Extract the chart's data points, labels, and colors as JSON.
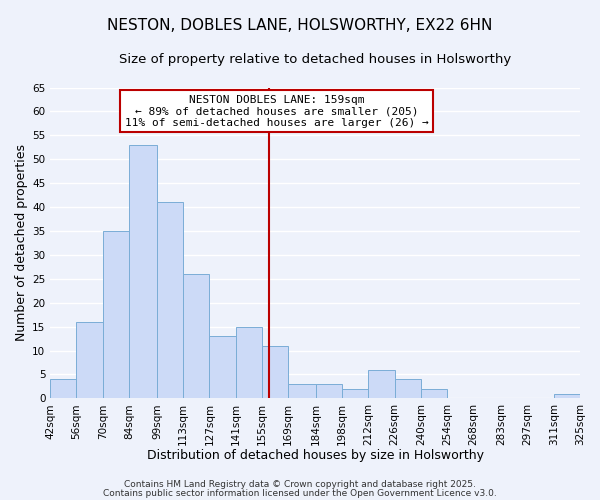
{
  "title": "NESTON, DOBLES LANE, HOLSWORTHY, EX22 6HN",
  "subtitle": "Size of property relative to detached houses in Holsworthy",
  "xlabel": "Distribution of detached houses by size in Holsworthy",
  "ylabel": "Number of detached properties",
  "bar_values": [
    4,
    16,
    35,
    53,
    41,
    26,
    13,
    15,
    11,
    3,
    3,
    2,
    6,
    4,
    2,
    0,
    0,
    0,
    0,
    1
  ],
  "bin_edges": [
    42,
    56,
    70,
    84,
    99,
    113,
    127,
    141,
    155,
    169,
    184,
    198,
    212,
    226,
    240,
    254,
    268,
    283,
    297,
    311,
    325
  ],
  "x_tick_labels": [
    "42sqm",
    "56sqm",
    "70sqm",
    "84sqm",
    "99sqm",
    "113sqm",
    "127sqm",
    "141sqm",
    "155sqm",
    "169sqm",
    "184sqm",
    "198sqm",
    "212sqm",
    "226sqm",
    "240sqm",
    "254sqm",
    "268sqm",
    "283sqm",
    "297sqm",
    "311sqm",
    "325sqm"
  ],
  "bar_color": "#ccdaf7",
  "bar_edge_color": "#7aadd6",
  "ylim": [
    0,
    65
  ],
  "yticks": [
    0,
    5,
    10,
    15,
    20,
    25,
    30,
    35,
    40,
    45,
    50,
    55,
    60,
    65
  ],
  "vline_x": 159,
  "vline_color": "#bb0000",
  "annotation_title": "NESTON DOBLES LANE: 159sqm",
  "annotation_line1": "← 89% of detached houses are smaller (205)",
  "annotation_line2": "11% of semi-detached houses are larger (26) →",
  "bg_color": "#eef2fb",
  "grid_color": "#ffffff",
  "footer_line1": "Contains HM Land Registry data © Crown copyright and database right 2025.",
  "footer_line2": "Contains public sector information licensed under the Open Government Licence v3.0.",
  "title_fontsize": 11,
  "subtitle_fontsize": 9.5,
  "axis_label_fontsize": 9,
  "tick_fontsize": 7.5,
  "annotation_fontsize": 8,
  "footer_fontsize": 6.5
}
